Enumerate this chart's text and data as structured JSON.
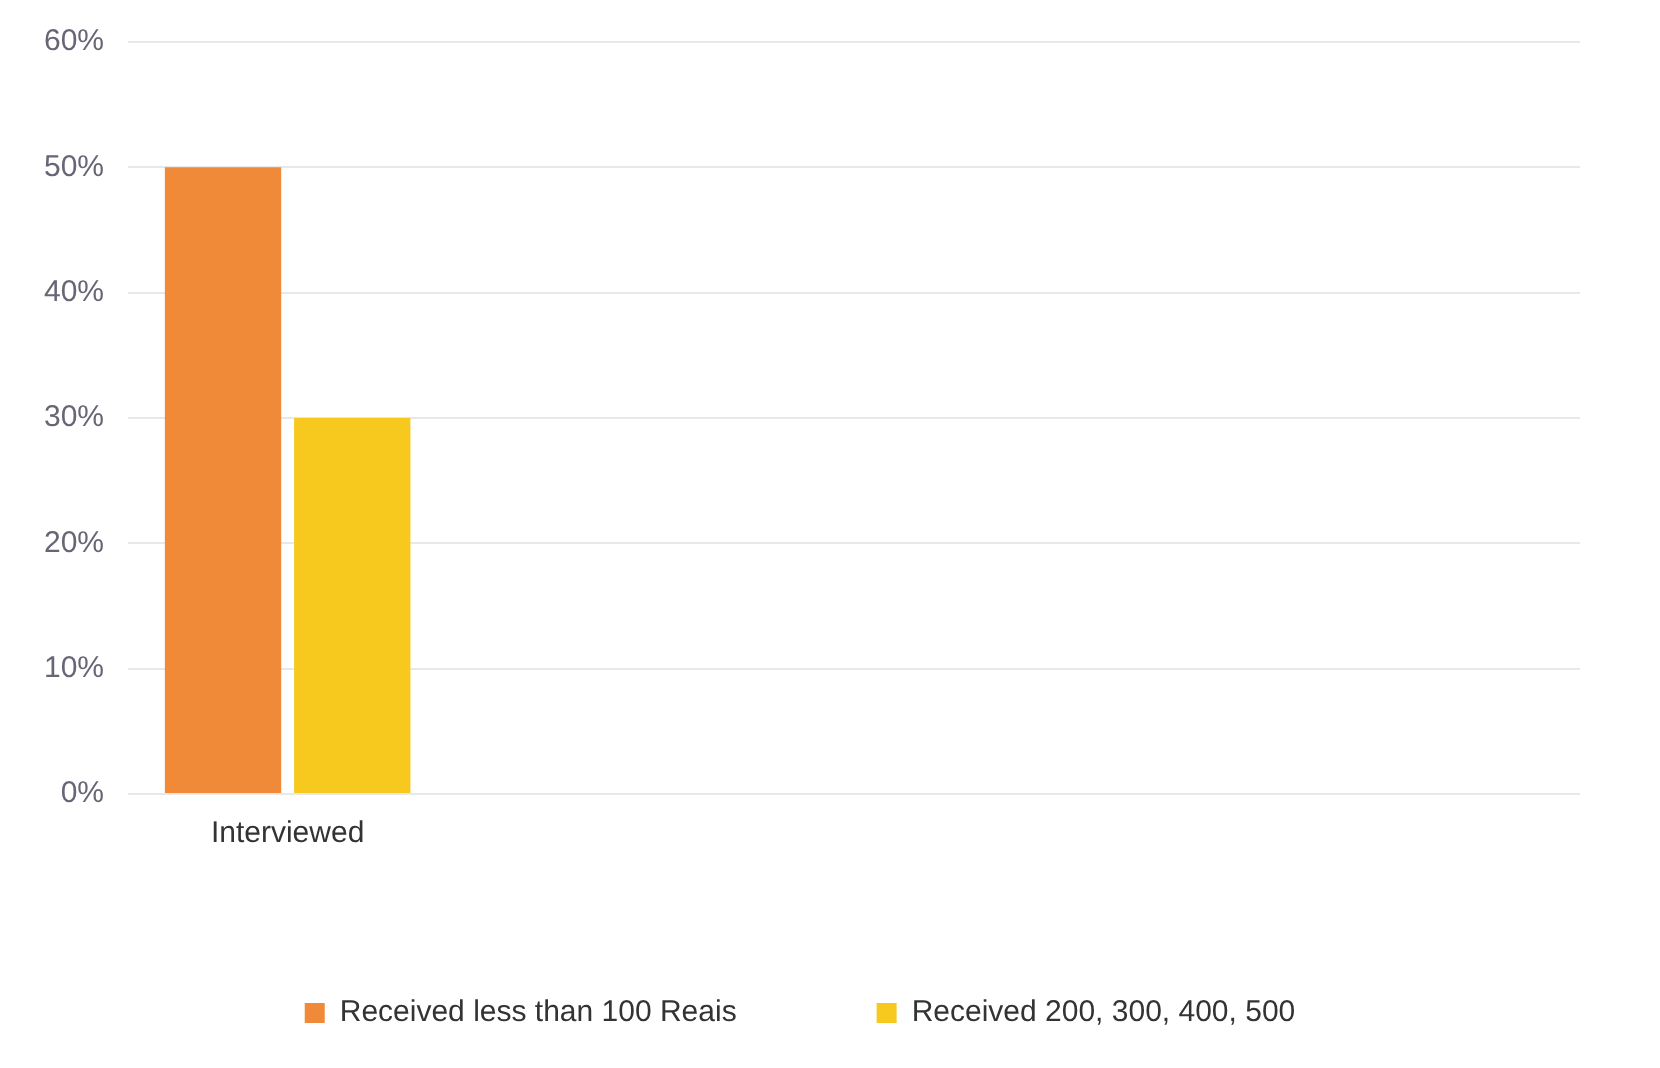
{
  "chart_data": {
    "type": "bar",
    "categories": [
      "Interviewed",
      null,
      null,
      null,
      null
    ],
    "series": [
      {
        "name": "Received less than 100 Reais",
        "color": "#f08a38",
        "values": [
          50,
          null,
          null,
          null,
          null
        ]
      },
      {
        "name": "Received 200, 300, 400, 500",
        "color": "#f7c81e",
        "values": [
          30,
          null,
          null,
          null,
          null
        ]
      }
    ],
    "ylim": [
      0,
      60
    ],
    "yticks": [
      {
        "value": 0,
        "label": "0%"
      },
      {
        "value": 10,
        "label": "10%"
      },
      {
        "value": 20,
        "label": "20%"
      },
      {
        "value": 30,
        "label": "30%"
      },
      {
        "value": 40,
        "label": "40%"
      },
      {
        "value": 50,
        "label": "50%"
      },
      {
        "value": 60,
        "label": "60%"
      }
    ],
    "grid": "y",
    "legend": "bottom"
  }
}
